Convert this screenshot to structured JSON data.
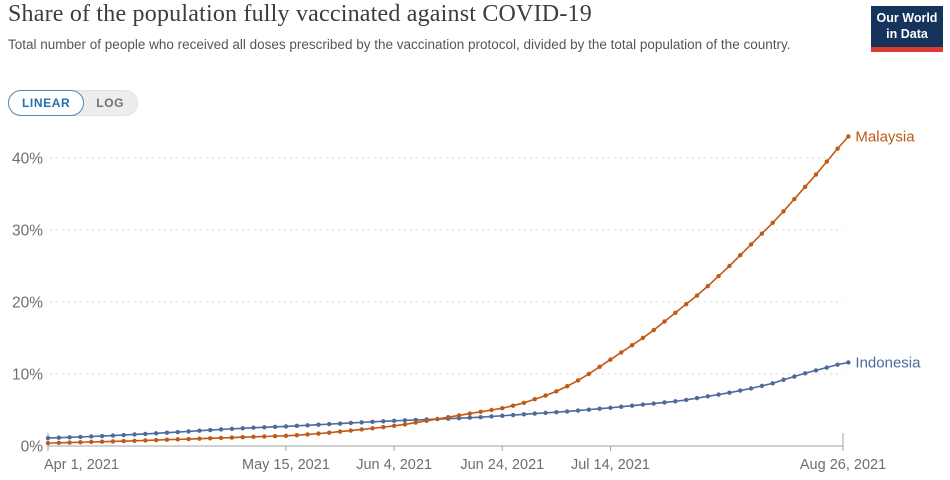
{
  "header": {
    "title": "Share of the population fully vaccinated against COVID-19",
    "subtitle": "Total number of people who received all doses prescribed by the vaccination protocol, divided by the total population of the country.",
    "logo": {
      "line1": "Our World",
      "line2": "in Data",
      "bg_color": "#15335B",
      "bar_color": "#DE3A2F"
    }
  },
  "controls": {
    "scale_options": [
      "LINEAR",
      "LOG"
    ],
    "selected": "LINEAR",
    "linear_label": "LINEAR",
    "log_label": "LOG",
    "accent_color": "#2271B1"
  },
  "chart_data": {
    "type": "line",
    "title": "Share of the population fully vaccinated against COVID-19",
    "xlabel": "",
    "ylabel": "",
    "ylim": [
      0,
      44
    ],
    "grid": "horizontal-dashed",
    "legend_position": "end-of-line-labels",
    "x_unit": "days since Apr 1, 2021",
    "yticks": [
      {
        "value": 0,
        "label": "0%"
      },
      {
        "value": 10,
        "label": "10%"
      },
      {
        "value": 20,
        "label": "20%"
      },
      {
        "value": 30,
        "label": "30%"
      },
      {
        "value": 40,
        "label": "40%"
      }
    ],
    "xticks": [
      {
        "day": 0,
        "label": "Apr 1, 2021"
      },
      {
        "day": 44,
        "label": "May 15, 2021"
      },
      {
        "day": 64,
        "label": "Jun 4, 2021"
      },
      {
        "day": 84,
        "label": "Jun 24, 2021"
      },
      {
        "day": 104,
        "label": "Jul 14, 2021"
      },
      {
        "day": 147,
        "label": "Aug 26, 2021"
      }
    ],
    "colors": {
      "grid": "#DADADA",
      "axis": "#A3A3A3",
      "tick_label": "#6E6E6E"
    },
    "series": [
      {
        "name": "Indonesia",
        "color": "#4C6A9C",
        "days": [
          0,
          2,
          4,
          6,
          8,
          10,
          12,
          14,
          16,
          18,
          20,
          22,
          24,
          26,
          28,
          30,
          32,
          34,
          36,
          38,
          40,
          42,
          44,
          46,
          48,
          50,
          52,
          54,
          56,
          58,
          60,
          62,
          64,
          66,
          68,
          70,
          72,
          74,
          76,
          78,
          80,
          82,
          84,
          86,
          88,
          90,
          92,
          94,
          96,
          98,
          100,
          102,
          104,
          106,
          108,
          110,
          112,
          114,
          116,
          118,
          120,
          122,
          124,
          126,
          128,
          130,
          132,
          134,
          136,
          138,
          140,
          142,
          144,
          146,
          148
        ],
        "values": [
          1.1,
          1.15,
          1.2,
          1.26,
          1.32,
          1.38,
          1.45,
          1.52,
          1.6,
          1.68,
          1.76,
          1.85,
          1.94,
          2.03,
          2.12,
          2.21,
          2.3,
          2.38,
          2.46,
          2.54,
          2.6,
          2.66,
          2.72,
          2.8,
          2.88,
          2.96,
          3.04,
          3.12,
          3.2,
          3.28,
          3.36,
          3.43,
          3.5,
          3.56,
          3.62,
          3.68,
          3.74,
          3.8,
          3.86,
          3.93,
          4,
          4.1,
          4.2,
          4.3,
          4.4,
          4.5,
          4.6,
          4.7,
          4.8,
          4.92,
          5.05,
          5.18,
          5.3,
          5.45,
          5.6,
          5.75,
          5.9,
          6.05,
          6.2,
          6.4,
          6.65,
          6.9,
          7.15,
          7.4,
          7.7,
          8,
          8.35,
          8.7,
          9.2,
          9.65,
          10.1,
          10.5,
          10.9,
          11.3,
          11.6
        ]
      },
      {
        "name": "Malaysia",
        "color": "#C05917",
        "days": [
          0,
          2,
          4,
          6,
          8,
          10,
          12,
          14,
          16,
          18,
          20,
          22,
          24,
          26,
          28,
          30,
          32,
          34,
          36,
          38,
          40,
          42,
          44,
          46,
          48,
          50,
          52,
          54,
          56,
          58,
          60,
          62,
          64,
          66,
          68,
          70,
          72,
          74,
          76,
          78,
          80,
          82,
          84,
          86,
          88,
          90,
          92,
          94,
          96,
          98,
          100,
          102,
          104,
          106,
          108,
          110,
          112,
          114,
          116,
          118,
          120,
          122,
          124,
          126,
          128,
          130,
          132,
          134,
          136,
          138,
          140,
          142,
          144,
          146,
          148
        ],
        "values": [
          0.4,
          0.44,
          0.48,
          0.52,
          0.56,
          0.6,
          0.64,
          0.68,
          0.72,
          0.77,
          0.82,
          0.87,
          0.92,
          0.97,
          1.02,
          1.07,
          1.12,
          1.17,
          1.22,
          1.27,
          1.32,
          1.37,
          1.42,
          1.5,
          1.6,
          1.72,
          1.85,
          2,
          2.15,
          2.3,
          2.45,
          2.62,
          2.8,
          3,
          3.25,
          3.5,
          3.75,
          4,
          4.25,
          4.5,
          4.75,
          5,
          5.25,
          5.6,
          6,
          6.5,
          7,
          7.6,
          8.3,
          9.1,
          10,
          11,
          12,
          13,
          14,
          15,
          16.1,
          17.3,
          18.5,
          19.7,
          20.9,
          22.2,
          23.6,
          25,
          26.5,
          28,
          29.5,
          31,
          32.6,
          34.3,
          36,
          37.7,
          39.5,
          41.3,
          43
        ]
      }
    ]
  }
}
